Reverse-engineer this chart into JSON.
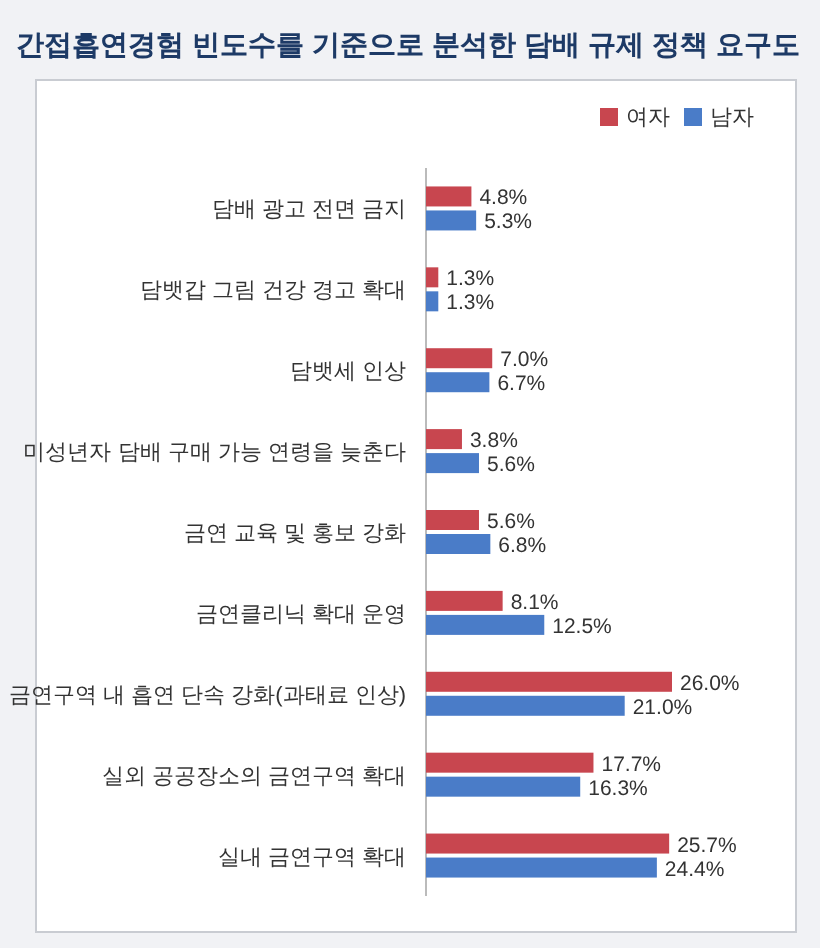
{
  "chart_data": {
    "type": "bar",
    "orientation": "horizontal",
    "title": "간접흡연경험 빈도수를 기준으로 분석한 담배 규제 정책 요구도",
    "legend": "top right",
    "categories": [
      "담배 광고 전면 금지",
      "담뱃갑 그림 건강 경고 확대",
      "담뱃세 인상",
      "미성년자 담배 구매 가능 연령을 늦춘다",
      "금연 교육 및 홍보 강화",
      "금연클리닉 확대 운영",
      "금연구역 내 흡연 단속 강화(과태료 인상)",
      "실외 공공장소의 금연구역 확대",
      "실내 금연구역 확대"
    ],
    "series": [
      {
        "name": "여자",
        "color": "#c8464f",
        "values": [
          4.8,
          1.3,
          7.0,
          3.8,
          5.6,
          8.1,
          26.0,
          17.7,
          25.7
        ],
        "value_labels": [
          "4.8%",
          "1.3%",
          "7.0%",
          "3.8%",
          "5.6%",
          "8.1%",
          "26.0%",
          "17.7%",
          "25.7%"
        ]
      },
      {
        "name": "남자",
        "color": "#4a7cc8",
        "values": [
          5.3,
          1.3,
          6.7,
          5.6,
          6.8,
          12.5,
          21.0,
          16.3,
          24.4
        ],
        "value_labels": [
          "5.3%",
          "1.3%",
          "6.7%",
          "5.6%",
          "6.8%",
          "12.5%",
          "21.0%",
          "16.3%",
          "24.4%"
        ]
      }
    ]
  }
}
